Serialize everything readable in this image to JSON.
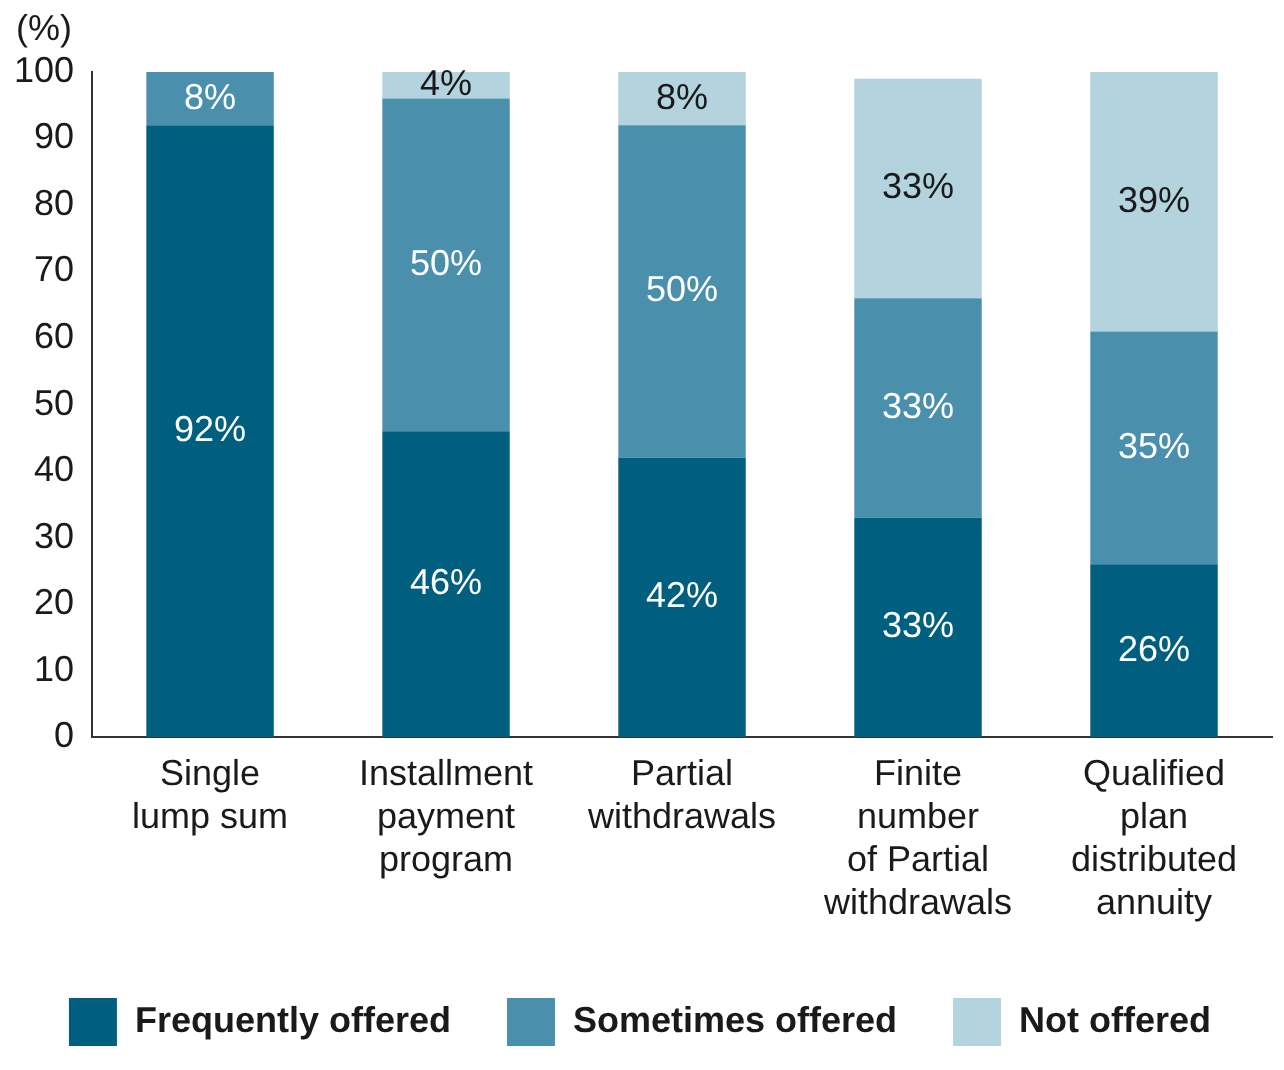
{
  "chart_data": {
    "type": "bar",
    "stacked": true,
    "ylabel": "(%)",
    "categories": [
      "Single\nlump sum",
      "Installment\npayment\nprogram",
      "Partial\nwithdrawals",
      "Finite\nnumber\nof Partial\nwithdrawals",
      "Qualified\nplan\ndistributed\nannuity"
    ],
    "series": [
      {
        "name": "Frequently offered",
        "color": "#005f7f",
        "values": [
          92,
          46,
          42,
          33,
          26
        ],
        "value_labels": [
          "92%",
          "46%",
          "42%",
          "33%",
          "26%"
        ]
      },
      {
        "name": "Sometimes offered",
        "color": "#4a90ad",
        "values": [
          8,
          50,
          50,
          33,
          35
        ],
        "value_labels": [
          "8%",
          "50%",
          "50%",
          "33%",
          "35%"
        ]
      },
      {
        "name": "Not offered",
        "color": "#b3d3df",
        "values": [
          null,
          4,
          8,
          33,
          39
        ],
        "value_labels": [
          null,
          "4%",
          "8%",
          "33%",
          "39%"
        ]
      }
    ],
    "ylim": [
      0,
      100
    ],
    "yticks": [
      0,
      10,
      20,
      30,
      40,
      50,
      60,
      70,
      80,
      90,
      100
    ],
    "grid": false,
    "legend": "bottom"
  }
}
